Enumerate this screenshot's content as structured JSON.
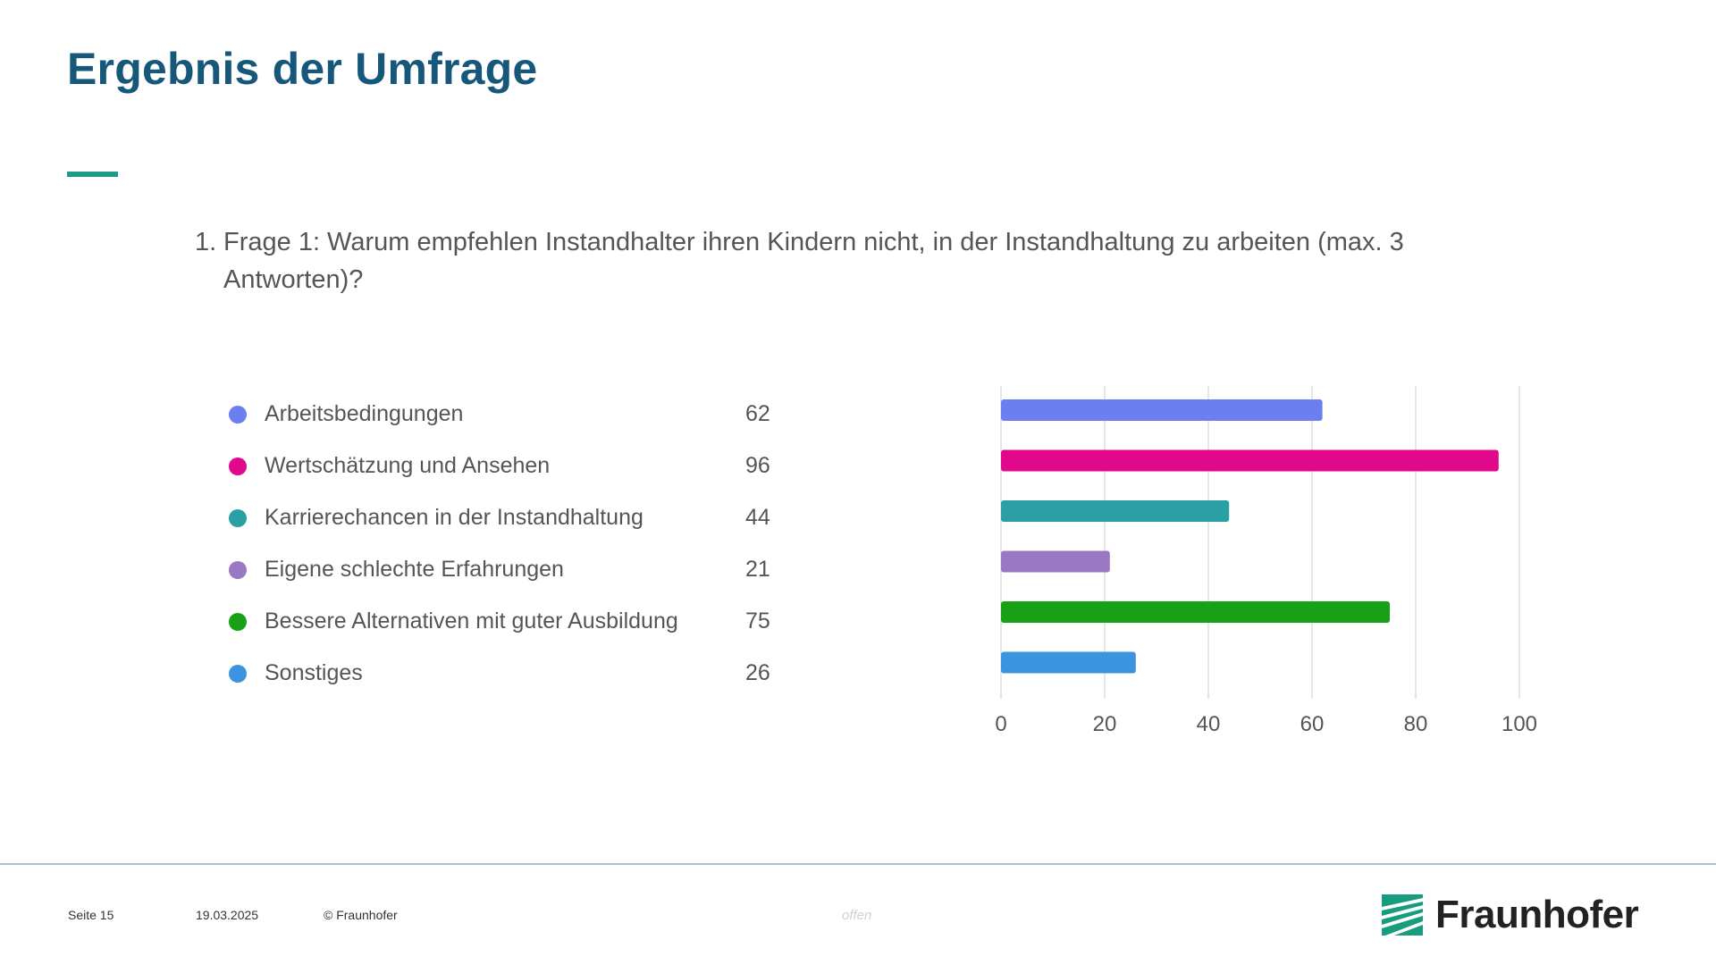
{
  "slide": {
    "title": "Ergebnis der Umfrage",
    "question_number": "1.",
    "question_text": "Frage 1: Warum empfehlen Instandhalter ihren Kindern nicht, in der Instandhaltung zu arbeiten (max. 3 Antworten)?"
  },
  "colors": {
    "title": "#17587a",
    "accent": "#1f9a86",
    "grid": "#dddddd",
    "footer_line": "#a6c2d6"
  },
  "chart_data": {
    "type": "bar",
    "orientation": "horizontal",
    "title": "",
    "xlabel": "",
    "ylabel": "",
    "categories": [
      "Arbeitsbedingungen",
      "Wertschätzung und Ansehen",
      "Karrierechancen in der Instandhaltung",
      "Eigene schlechte Erfahrungen",
      "Bessere Alternativen mit guter Ausbildung",
      "Sonstiges"
    ],
    "values": [
      62,
      96,
      44,
      21,
      75,
      26
    ],
    "colors": [
      "#6b7ff0",
      "#e0098c",
      "#2aa0a4",
      "#9a78c4",
      "#18a116",
      "#3c94e0"
    ],
    "xlim": [
      0,
      100
    ],
    "xticks": [
      "0",
      "20",
      "40",
      "60",
      "80",
      "100"
    ],
    "grid": true,
    "legend_position": "left"
  },
  "footer": {
    "page": "Seite 15",
    "date": "19.03.2025",
    "copyright": "© Fraunhofer",
    "classification": "offen",
    "logo_text": "Fraunhofer"
  }
}
